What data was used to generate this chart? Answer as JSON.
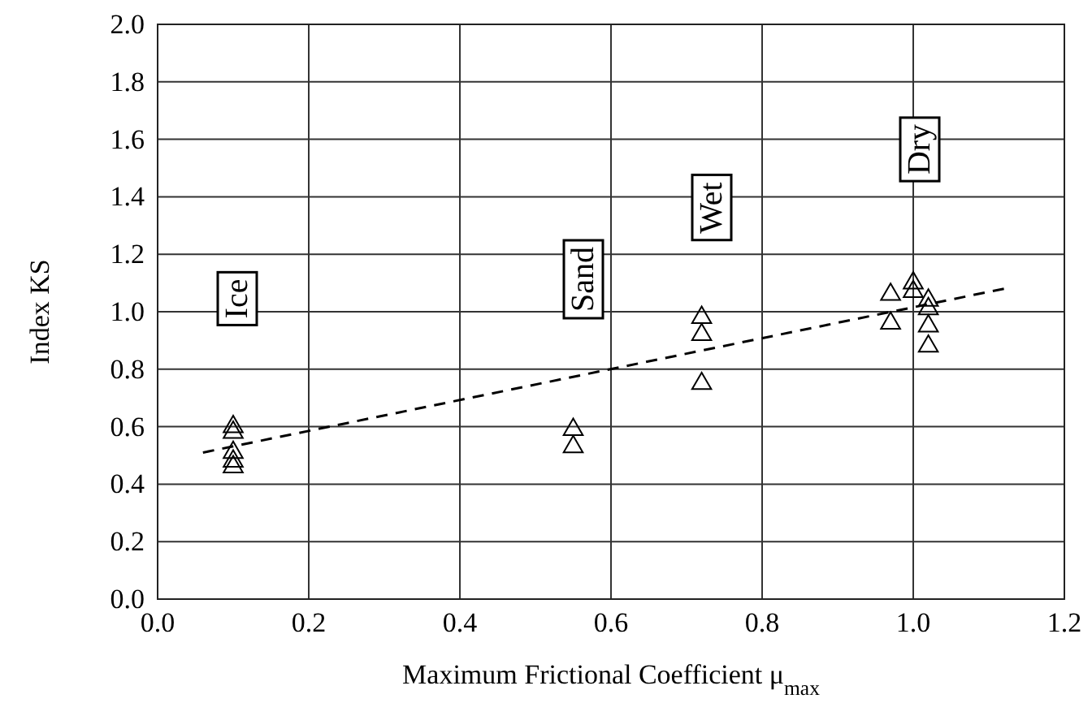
{
  "chart_data": {
    "type": "scatter",
    "xlabel": "Maximum Frictional Coefficient  μ$_{max}$",
    "ylabel": "Index KS",
    "xlim": [
      0,
      1.2
    ],
    "xticks": [
      {
        "value": 0,
        "label": "0.0"
      },
      0.2,
      0.4,
      0.6,
      0.8,
      {
        "value": 1,
        "label": "1.0"
      },
      1.2
    ],
    "ylim": [
      0,
      2
    ],
    "yticks": [
      {
        "value": 0,
        "label": "0.0"
      },
      0.2,
      0.4,
      0.6,
      0.8,
      {
        "value": 1,
        "label": "1.0"
      },
      1.2,
      1.4,
      1.6,
      1.8,
      {
        "value": 2,
        "label": "2.0"
      }
    ],
    "grid": true,
    "marker": "triangle",
    "series": [
      {
        "color": "#000000",
        "x": [
          0.1,
          0.1,
          0.1,
          0.1,
          0.1,
          0.55,
          0.55,
          0.72,
          0.72,
          0.72,
          0.97,
          0.97,
          1.0,
          1.0,
          1.02,
          1.02,
          1.02,
          1.02
        ],
        "values": [
          0.6,
          0.58,
          0.51,
          0.48,
          0.46,
          0.59,
          0.53,
          0.98,
          0.92,
          0.75,
          1.06,
          0.96,
          1.1,
          1.07,
          1.04,
          1.01,
          0.95,
          0.88
        ]
      },
      {
        "type": "line",
        "color": "#000000",
        "line_style": "dashed",
        "marker": "none",
        "x": [
          0.06,
          1.12
        ],
        "values": [
          0.51,
          1.08
        ]
      }
    ],
    "annotations": [
      "Ice",
      "Sand",
      "Wet",
      "Dry"
    ]
  }
}
